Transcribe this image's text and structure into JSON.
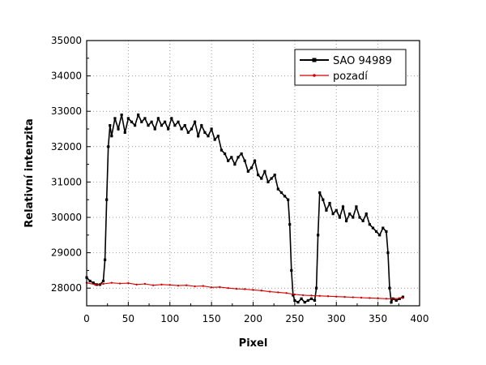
{
  "chart_data": {
    "type": "line",
    "title": "",
    "xlabel": "Pixel",
    "ylabel": "Relativní intenzita",
    "xlim": [
      0,
      400
    ],
    "ylim": [
      27500,
      35000
    ],
    "xticks": [
      0,
      50,
      100,
      150,
      200,
      250,
      300,
      350,
      400
    ],
    "yticks": [
      28000,
      29000,
      30000,
      31000,
      32000,
      33000,
      34000,
      35000
    ],
    "grid": true,
    "legend_position": "top-right",
    "series": [
      {
        "name": "SAO 94989",
        "color": "#000000",
        "marker": "square",
        "x": [
          0,
          4,
          8,
          12,
          16,
          20,
          22,
          24,
          26,
          28,
          30,
          34,
          38,
          42,
          46,
          50,
          54,
          58,
          62,
          66,
          70,
          74,
          78,
          82,
          86,
          90,
          94,
          98,
          102,
          106,
          110,
          114,
          118,
          122,
          126,
          130,
          134,
          138,
          142,
          146,
          150,
          154,
          158,
          162,
          166,
          170,
          174,
          178,
          182,
          186,
          190,
          194,
          198,
          202,
          206,
          210,
          214,
          218,
          222,
          226,
          230,
          234,
          238,
          242,
          244,
          246,
          248,
          250,
          254,
          258,
          262,
          266,
          270,
          274,
          276,
          278,
          280,
          284,
          288,
          292,
          296,
          300,
          304,
          308,
          312,
          316,
          320,
          324,
          328,
          332,
          336,
          340,
          344,
          348,
          352,
          356,
          360,
          362,
          364,
          366,
          368,
          372,
          376,
          380
        ],
        "y": [
          28300,
          28200,
          28150,
          28100,
          28100,
          28200,
          28800,
          30500,
          32000,
          32600,
          32300,
          32800,
          32500,
          32900,
          32400,
          32800,
          32700,
          32600,
          32900,
          32700,
          32800,
          32600,
          32700,
          32500,
          32800,
          32600,
          32700,
          32500,
          32800,
          32600,
          32700,
          32500,
          32600,
          32400,
          32500,
          32700,
          32300,
          32600,
          32400,
          32300,
          32500,
          32200,
          32300,
          31900,
          31800,
          31600,
          31700,
          31500,
          31700,
          31800,
          31600,
          31300,
          31400,
          31600,
          31200,
          31100,
          31300,
          31000,
          31100,
          31200,
          30800,
          30700,
          30600,
          30500,
          29800,
          28500,
          27800,
          27650,
          27600,
          27700,
          27600,
          27650,
          27700,
          27650,
          28000,
          29500,
          30700,
          30500,
          30200,
          30400,
          30100,
          30200,
          30000,
          30300,
          29900,
          30100,
          30000,
          30300,
          30000,
          29900,
          30100,
          29800,
          29700,
          29600,
          29500,
          29700,
          29600,
          29000,
          28000,
          27600,
          27700,
          27650,
          27700,
          27750
        ]
      },
      {
        "name": "pozadí",
        "color": "#d40000",
        "marker": "dot",
        "x": [
          0,
          10,
          20,
          30,
          40,
          50,
          60,
          70,
          80,
          90,
          100,
          110,
          120,
          130,
          140,
          150,
          160,
          170,
          180,
          190,
          200,
          210,
          220,
          230,
          240,
          250,
          260,
          270,
          280,
          290,
          300,
          310,
          320,
          330,
          340,
          350,
          360,
          370,
          380
        ],
        "y": [
          28150,
          28100,
          28120,
          28150,
          28130,
          28140,
          28100,
          28120,
          28080,
          28100,
          28090,
          28070,
          28080,
          28050,
          28060,
          28020,
          28030,
          28000,
          27980,
          27970,
          27950,
          27930,
          27900,
          27880,
          27860,
          27820,
          27800,
          27790,
          27780,
          27770,
          27760,
          27750,
          27740,
          27730,
          27720,
          27710,
          27700,
          27700,
          27720
        ]
      }
    ]
  }
}
